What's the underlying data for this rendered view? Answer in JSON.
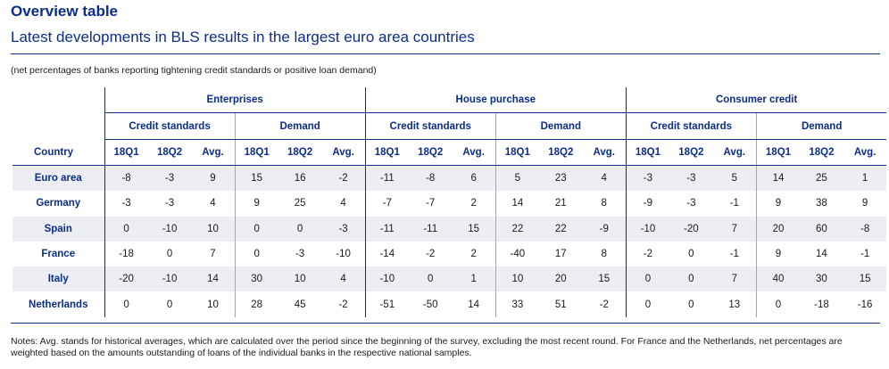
{
  "title": "Overview table",
  "subtitle": "Latest developments in BLS results in the largest euro area countries",
  "unit_note": "(net percentages of banks reporting tightening credit standards or positive loan demand)",
  "groups": [
    "Enterprises",
    "House purchase",
    "Consumer credit"
  ],
  "subgroups": [
    "Credit standards",
    "Demand"
  ],
  "country_header": "Country",
  "periods": [
    "18Q1",
    "18Q2",
    "Avg."
  ],
  "rows": [
    {
      "country": "Euro area",
      "values": [
        "-8",
        "-3",
        "9",
        "15",
        "16",
        "-2",
        "-11",
        "-8",
        "6",
        "5",
        "23",
        "4",
        "-3",
        "-3",
        "5",
        "14",
        "25",
        "1"
      ]
    },
    {
      "country": "Germany",
      "values": [
        "-3",
        "-3",
        "4",
        "9",
        "25",
        "4",
        "-7",
        "-7",
        "2",
        "14",
        "21",
        "8",
        "-9",
        "-3",
        "-1",
        "9",
        "38",
        "9"
      ]
    },
    {
      "country": "Spain",
      "values": [
        "0",
        "-10",
        "10",
        "0",
        "0",
        "-3",
        "-11",
        "-11",
        "15",
        "22",
        "22",
        "-9",
        "-10",
        "-20",
        "7",
        "20",
        "60",
        "-8"
      ]
    },
    {
      "country": "France",
      "values": [
        "-18",
        "0",
        "7",
        "0",
        "-3",
        "-10",
        "-14",
        "-2",
        "2",
        "-40",
        "17",
        "8",
        "-2",
        "0",
        "-1",
        "9",
        "14",
        "-1"
      ]
    },
    {
      "country": "Italy",
      "values": [
        "-20",
        "-10",
        "14",
        "30",
        "10",
        "4",
        "-10",
        "0",
        "1",
        "10",
        "20",
        "15",
        "0",
        "0",
        "7",
        "40",
        "30",
        "15"
      ]
    },
    {
      "country": "Netherlands",
      "values": [
        "0",
        "0",
        "10",
        "28",
        "45",
        "-2",
        "-51",
        "-50",
        "14",
        "33",
        "51",
        "-2",
        "0",
        "0",
        "13",
        "0",
        "-18",
        "-16"
      ]
    }
  ],
  "notes": "Notes: Avg. stands for historical averages, which are calculated over the period since the beginning of the survey, excluding the most recent round. For France and the Netherlands, net percentages are weighted based on the amounts outstanding of loans of the individual banks in the respective national samples."
}
